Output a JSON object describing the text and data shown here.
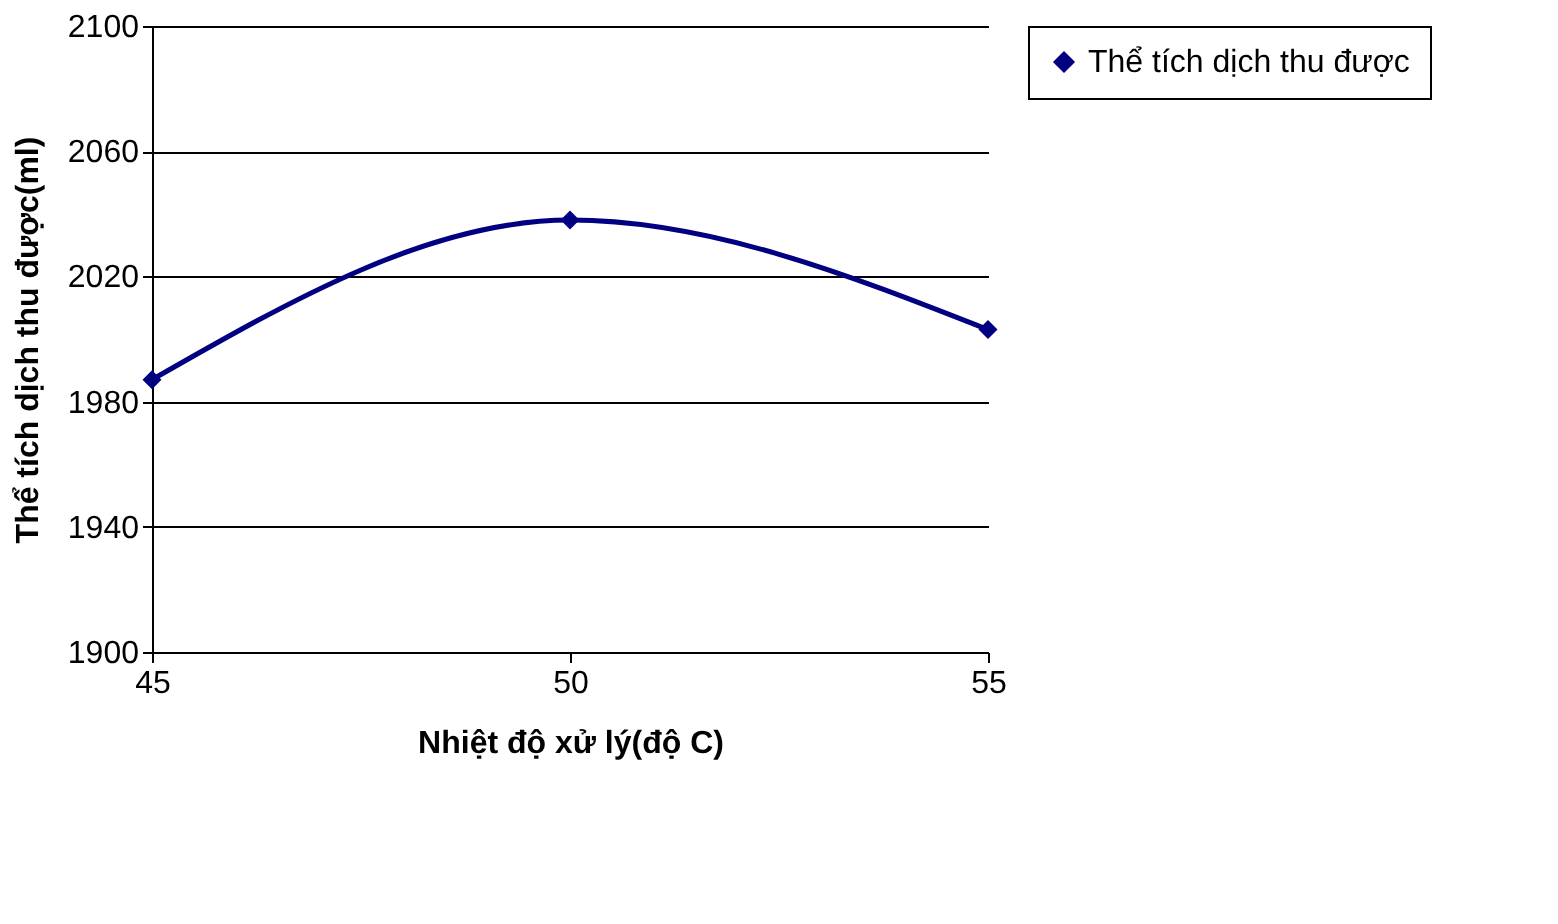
{
  "chart_data": {
    "type": "line",
    "xlabel": "Nhiệt độ xử lý(độ C)",
    "ylabel": "Thể tích dịch thu được(ml)",
    "categories": [
      "45",
      "50",
      "55"
    ],
    "series": [
      {
        "name": "Thể tích dịch thu được",
        "color": "#000080",
        "values": [
          1987,
          2038,
          2003
        ]
      }
    ],
    "ylim": [
      1900,
      2100
    ],
    "yticks": [
      1900,
      1940,
      1980,
      2020,
      2060,
      2100
    ],
    "grid": "y",
    "legend": "right",
    "marker": "diamond",
    "line_style": "solid"
  }
}
